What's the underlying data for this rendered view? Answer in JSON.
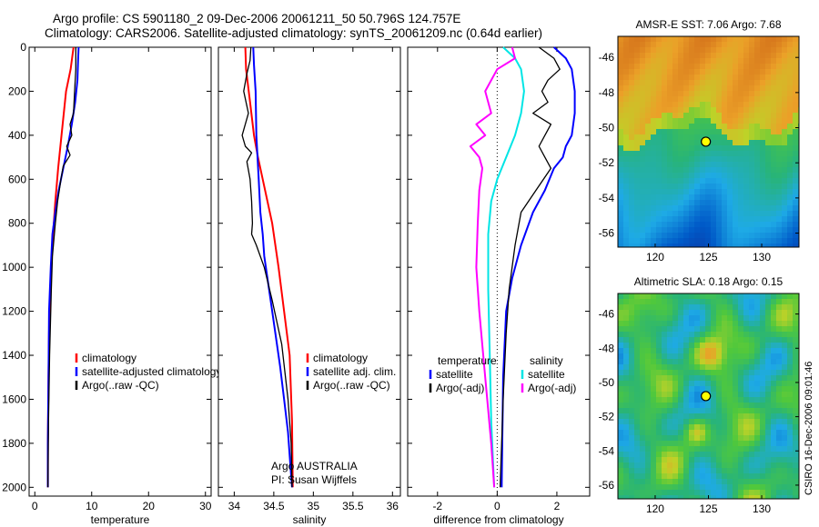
{
  "header": {
    "line1": "Argo profile: CS 5901180_2 09-Dec-2006 20061211_50 50.796S 124.757E",
    "line2": "Climatology: CARS2006. Satellite-adjusted climatology: synTS_20061209.nc (0.64d earlier)"
  },
  "colors": {
    "climatology": "#ff0000",
    "satellite": "#0000ff",
    "argo": "#000000",
    "cyan": "#00e5e5",
    "magenta": "#ff00ff"
  },
  "chart_data": [
    {
      "type": "line",
      "xlabel": "temperature",
      "xlim": [
        -1,
        31
      ],
      "ylim": [
        2040,
        0
      ],
      "xticks": [
        0,
        10,
        20,
        30
      ],
      "yticks": [
        0,
        200,
        400,
        600,
        800,
        1000,
        1200,
        1400,
        1600,
        1800,
        2000
      ],
      "legend": [
        "climatology",
        "satellite-adjusted climatology",
        "Argo(..raw -QC)"
      ],
      "series": [
        {
          "name": "climatology",
          "color": "#ff0000",
          "width": 2,
          "x": [
            6.8,
            6.3,
            5.5,
            4.7,
            4.1,
            3.6,
            3.2,
            2.9,
            2.7,
            2.5,
            2.4,
            2.3,
            2.3
          ],
          "y": [
            0,
            100,
            200,
            400,
            550,
            700,
            850,
            1000,
            1150,
            1300,
            1500,
            1800,
            2000
          ]
        },
        {
          "name": "satellite-adjusted climatology",
          "color": "#0000ff",
          "width": 2,
          "x": [
            7.7,
            7.6,
            7.5,
            7.1,
            6.5,
            5.8,
            5.0,
            4.2,
            3.6,
            3.1,
            2.8,
            2.5,
            2.4,
            2.3,
            2.3
          ],
          "y": [
            0,
            60,
            150,
            250,
            350,
            450,
            550,
            650,
            750,
            850,
            1000,
            1200,
            1500,
            1800,
            2000
          ]
        },
        {
          "name": "Argo(..raw -QC)",
          "color": "#000000",
          "width": 1.3,
          "x": [
            7.2,
            7.2,
            7.0,
            6.8,
            6.2,
            6.5,
            5.6,
            6.2,
            5.0,
            4.6,
            4.0,
            3.6,
            3.1,
            2.9,
            2.6,
            2.4,
            2.3
          ],
          "y": [
            0,
            100,
            200,
            300,
            350,
            400,
            450,
            490,
            540,
            600,
            700,
            800,
            950,
            1100,
            1400,
            1700,
            2000
          ]
        }
      ]
    },
    {
      "type": "line",
      "xlabel": "salinity",
      "xlim": [
        33.8,
        36.1
      ],
      "ylim": [
        2040,
        0
      ],
      "xticks": [
        34,
        34.5,
        35,
        35.5,
        36
      ],
      "legend": [
        "climatology",
        "satellite adj. clim.",
        "Argo(..raw -QC)"
      ],
      "annotations": [
        "Argo AUSTRALIA",
        "PI: Susan Wijffels"
      ],
      "series": [
        {
          "name": "climatology",
          "color": "#ff0000",
          "width": 2,
          "x": [
            34.14,
            34.15,
            34.2,
            34.25,
            34.3,
            34.36,
            34.42,
            34.48,
            34.56,
            34.63,
            34.7,
            34.73,
            34.74
          ],
          "y": [
            0,
            100,
            250,
            400,
            500,
            600,
            700,
            800,
            1000,
            1200,
            1400,
            1700,
            2000
          ]
        },
        {
          "name": "satellite adj. clim.",
          "color": "#0000ff",
          "width": 2,
          "x": [
            34.24,
            34.25,
            34.27,
            34.28,
            34.31,
            34.33,
            34.36,
            34.38,
            34.42,
            34.46,
            34.52,
            34.58,
            34.63,
            34.68,
            34.71,
            34.73
          ],
          "y": [
            0,
            80,
            200,
            400,
            600,
            750,
            850,
            950,
            1050,
            1150,
            1300,
            1450,
            1600,
            1750,
            1900,
            2000
          ]
        },
        {
          "name": "Argo(..raw -QC)",
          "color": "#000000",
          "width": 1.3,
          "x": [
            34.21,
            34.2,
            34.16,
            34.12,
            34.18,
            34.1,
            34.14,
            34.22,
            34.16,
            34.2,
            34.22,
            34.23,
            34.22,
            34.28,
            34.38,
            34.48,
            34.6,
            34.68,
            34.72,
            34.73
          ],
          "y": [
            0,
            60,
            120,
            200,
            300,
            400,
            450,
            480,
            520,
            600,
            700,
            800,
            850,
            900,
            1000,
            1150,
            1350,
            1600,
            1800,
            2000
          ]
        }
      ]
    },
    {
      "type": "line",
      "xlabel": "difference from climatology",
      "xlim": [
        -3,
        3.1
      ],
      "ylim": [
        2040,
        0
      ],
      "xticks": [
        -2,
        0,
        2
      ],
      "legend_groups": [
        {
          "title": "temperature",
          "items": [
            "satellite",
            "Argo(-adj)"
          ]
        },
        {
          "title": "salinity",
          "items": [
            "satellite",
            "Argo(-adj)"
          ]
        }
      ],
      "series": [
        {
          "name": "satellite",
          "group": "temperature",
          "color": "#0000ff",
          "width": 2,
          "x": [
            1.9,
            2.3,
            2.5,
            2.6,
            2.6,
            2.5,
            2.3,
            2.2,
            1.9,
            1.6,
            1.2,
            0.8,
            0.5,
            0.3,
            0.2,
            0.15
          ],
          "y": [
            0,
            50,
            100,
            200,
            300,
            400,
            450,
            500,
            550,
            650,
            750,
            900,
            1050,
            1200,
            1500,
            2000
          ]
        },
        {
          "name": "Argo(-adj)",
          "group": "temperature",
          "color": "#000000",
          "width": 1.3,
          "x": [
            1.4,
            1.9,
            2.1,
            1.7,
            1.5,
            1.7,
            1.2,
            1.8,
            1.6,
            1.4,
            1.6,
            1.8,
            1.3,
            0.8,
            0.6,
            0.4,
            0.3,
            0.2,
            0.1
          ],
          "y": [
            0,
            50,
            100,
            150,
            200,
            250,
            300,
            350,
            400,
            450,
            500,
            550,
            650,
            750,
            900,
            1100,
            1300,
            1600,
            2000
          ]
        },
        {
          "name": "satellite",
          "group": "salinity",
          "color": "#00e5e5",
          "width": 2,
          "x": [
            0.2,
            0.6,
            0.8,
            0.9,
            0.8,
            0.6,
            0.3,
            0.0,
            -0.2,
            -0.3,
            -0.3,
            -0.25,
            -0.2,
            -0.1
          ],
          "y": [
            0,
            50,
            100,
            200,
            300,
            400,
            500,
            600,
            700,
            850,
            1100,
            1400,
            1700,
            2000
          ]
        },
        {
          "name": "Argo(-adj)",
          "group": "salinity",
          "color": "#ff00ff",
          "width": 2,
          "x": [
            0.5,
            0.6,
            0.0,
            -0.4,
            -0.2,
            -0.7,
            -0.4,
            -0.9,
            -0.6,
            -0.5,
            -0.6,
            -0.65,
            -0.7,
            -0.6,
            -0.4,
            -0.2,
            -0.1
          ],
          "y": [
            0,
            50,
            100,
            200,
            300,
            350,
            400,
            450,
            500,
            550,
            650,
            800,
            1000,
            1200,
            1500,
            1800,
            2000
          ]
        }
      ]
    },
    {
      "type": "heatmap",
      "title": "AMSR-E SST: 7.06 Argo: 7.68",
      "xticks": [
        120,
        125,
        130
      ],
      "yticks": [
        -46,
        -48,
        -50,
        -52,
        -54,
        -56
      ],
      "xlim": [
        116.5,
        133.5
      ],
      "ylim": [
        -56.8,
        -44.8
      ],
      "marker": {
        "lon": 124.757,
        "lat": -50.796
      }
    },
    {
      "type": "heatmap",
      "title": "Altimetric SLA: 0.18 Argo: 0.15",
      "xticks": [
        120,
        125,
        130
      ],
      "yticks": [
        -46,
        -48,
        -50,
        -52,
        -54,
        -56
      ],
      "xlim": [
        116.5,
        133.5
      ],
      "ylim": [
        -56.8,
        -44.8
      ],
      "marker": {
        "lon": 124.757,
        "lat": -50.796
      }
    }
  ],
  "credit": "CSIRO 16-Dec-2006 09:01:46"
}
